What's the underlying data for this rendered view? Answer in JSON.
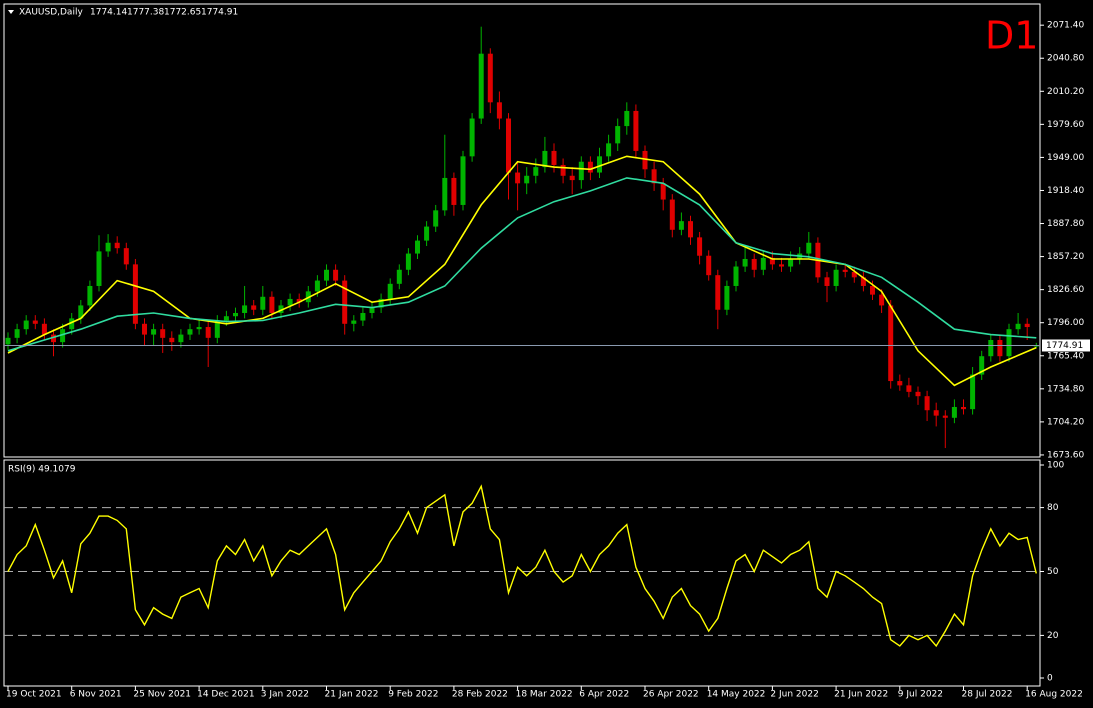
{
  "chart_data": [
    {
      "type": "candlestick",
      "title": "XAUUSD,Daily",
      "annotation": "D1",
      "categories": [
        "19 Oct 2021",
        null,
        null,
        null,
        null,
        null,
        null,
        "6 Nov 2021",
        null,
        null,
        null,
        null,
        null,
        null,
        "25 Nov 2021",
        null,
        null,
        null,
        null,
        null,
        null,
        "14 Dec 2021",
        null,
        null,
        null,
        null,
        null,
        null,
        "3 Jan 2022",
        null,
        null,
        null,
        null,
        null,
        null,
        "21 Jan 2022",
        null,
        null,
        null,
        null,
        null,
        null,
        "9 Feb 2022",
        null,
        null,
        null,
        null,
        null,
        null,
        "28 Feb 2022",
        null,
        null,
        null,
        null,
        null,
        null,
        "18 Mar 2022",
        null,
        null,
        null,
        null,
        null,
        null,
        "6 Apr 2022",
        null,
        null,
        null,
        null,
        null,
        null,
        "26 Apr 2022",
        null,
        null,
        null,
        null,
        null,
        null,
        "14 May 2022",
        null,
        null,
        null,
        null,
        null,
        null,
        "2 Jun 2022",
        null,
        null,
        null,
        null,
        null,
        null,
        "21 Jun 2022",
        null,
        null,
        null,
        null,
        null,
        null,
        "9 Jul 2022",
        null,
        null,
        null,
        null,
        null,
        null,
        "28 Jul 2022",
        null,
        null,
        null,
        null,
        null,
        null,
        "16 Aug 2022",
        null
      ],
      "ohlc": [
        [
          1776,
          1787,
          1771,
          1782
        ],
        [
          1782,
          1795,
          1777,
          1790
        ],
        [
          1790,
          1803,
          1785,
          1798
        ],
        [
          1798,
          1803,
          1790,
          1795
        ],
        [
          1795,
          1800,
          1780,
          1785
        ],
        [
          1785,
          1790,
          1765,
          1778
        ],
        [
          1778,
          1795,
          1773,
          1790
        ],
        [
          1790,
          1805,
          1785,
          1800
        ],
        [
          1800,
          1817,
          1795,
          1812
        ],
        [
          1812,
          1835,
          1807,
          1830
        ],
        [
          1830,
          1877,
          1825,
          1862
        ],
        [
          1862,
          1878,
          1857,
          1870
        ],
        [
          1870,
          1876,
          1860,
          1865
        ],
        [
          1865,
          1870,
          1845,
          1850
        ],
        [
          1850,
          1855,
          1790,
          1795
        ],
        [
          1795,
          1800,
          1775,
          1785
        ],
        [
          1785,
          1795,
          1775,
          1790
        ],
        [
          1790,
          1795,
          1768,
          1782
        ],
        [
          1782,
          1788,
          1770,
          1778
        ],
        [
          1778,
          1790,
          1773,
          1785
        ],
        [
          1785,
          1795,
          1780,
          1790
        ],
        [
          1790,
          1800,
          1785,
          1792
        ],
        [
          1792,
          1797,
          1755,
          1782
        ],
        [
          1782,
          1803,
          1777,
          1798
        ],
        [
          1798,
          1807,
          1793,
          1802
        ],
        [
          1802,
          1810,
          1797,
          1805
        ],
        [
          1805,
          1830,
          1800,
          1812
        ],
        [
          1812,
          1817,
          1803,
          1808
        ],
        [
          1808,
          1830,
          1803,
          1820
        ],
        [
          1820,
          1825,
          1800,
          1805
        ],
        [
          1805,
          1817,
          1800,
          1812
        ],
        [
          1812,
          1823,
          1807,
          1818
        ],
        [
          1818,
          1823,
          1810,
          1815
        ],
        [
          1815,
          1830,
          1810,
          1825
        ],
        [
          1825,
          1840,
          1820,
          1835
        ],
        [
          1835,
          1850,
          1830,
          1845
        ],
        [
          1845,
          1850,
          1830,
          1835
        ],
        [
          1835,
          1840,
          1785,
          1795
        ],
        [
          1795,
          1803,
          1788,
          1798
        ],
        [
          1798,
          1810,
          1793,
          1805
        ],
        [
          1805,
          1815,
          1800,
          1810
        ],
        [
          1810,
          1823,
          1805,
          1818
        ],
        [
          1818,
          1837,
          1813,
          1832
        ],
        [
          1832,
          1850,
          1827,
          1845
        ],
        [
          1845,
          1865,
          1840,
          1860
        ],
        [
          1860,
          1877,
          1855,
          1872
        ],
        [
          1872,
          1890,
          1867,
          1885
        ],
        [
          1885,
          1905,
          1880,
          1900
        ],
        [
          1900,
          1970,
          1895,
          1930
        ],
        [
          1930,
          1935,
          1895,
          1905
        ],
        [
          1905,
          1955,
          1900,
          1950
        ],
        [
          1950,
          1990,
          1945,
          1985
        ],
        [
          1985,
          2070,
          1980,
          2045
        ],
        [
          2045,
          2050,
          1990,
          2000
        ],
        [
          2000,
          2010,
          1975,
          1985
        ],
        [
          1985,
          1990,
          1910,
          1935
        ],
        [
          1935,
          1945,
          1900,
          1925
        ],
        [
          1925,
          1940,
          1915,
          1932
        ],
        [
          1932,
          1948,
          1925,
          1940
        ],
        [
          1940,
          1968,
          1935,
          1955
        ],
        [
          1955,
          1962,
          1935,
          1942
        ],
        [
          1942,
          1948,
          1925,
          1932
        ],
        [
          1932,
          1940,
          1915,
          1928
        ],
        [
          1928,
          1950,
          1920,
          1945
        ],
        [
          1945,
          1950,
          1928,
          1935
        ],
        [
          1935,
          1958,
          1930,
          1950
        ],
        [
          1950,
          1970,
          1945,
          1962
        ],
        [
          1962,
          1985,
          1955,
          1978
        ],
        [
          1978,
          2000,
          1970,
          1992
        ],
        [
          1992,
          1998,
          1948,
          1955
        ],
        [
          1955,
          1960,
          1930,
          1938
        ],
        [
          1938,
          1945,
          1918,
          1925
        ],
        [
          1925,
          1930,
          1900,
          1910
        ],
        [
          1910,
          1915,
          1875,
          1882
        ],
        [
          1882,
          1898,
          1877,
          1890
        ],
        [
          1890,
          1895,
          1868,
          1875
        ],
        [
          1875,
          1880,
          1850,
          1858
        ],
        [
          1858,
          1863,
          1835,
          1840
        ],
        [
          1840,
          1845,
          1790,
          1808
        ],
        [
          1808,
          1835,
          1803,
          1830
        ],
        [
          1830,
          1853,
          1825,
          1848
        ],
        [
          1848,
          1868,
          1843,
          1855
        ],
        [
          1855,
          1860,
          1838,
          1845
        ],
        [
          1845,
          1862,
          1840,
          1856
        ],
        [
          1856,
          1862,
          1845,
          1850
        ],
        [
          1850,
          1856,
          1843,
          1848
        ],
        [
          1848,
          1862,
          1843,
          1855
        ],
        [
          1855,
          1866,
          1850,
          1860
        ],
        [
          1860,
          1880,
          1855,
          1870
        ],
        [
          1870,
          1875,
          1833,
          1838
        ],
        [
          1838,
          1843,
          1815,
          1830
        ],
        [
          1830,
          1850,
          1825,
          1845
        ],
        [
          1845,
          1850,
          1838,
          1843
        ],
        [
          1843,
          1848,
          1833,
          1838
        ],
        [
          1838,
          1843,
          1825,
          1830
        ],
        [
          1830,
          1835,
          1817,
          1822
        ],
        [
          1822,
          1827,
          1805,
          1812
        ],
        [
          1812,
          1817,
          1735,
          1742
        ],
        [
          1742,
          1748,
          1733,
          1738
        ],
        [
          1738,
          1745,
          1727,
          1732
        ],
        [
          1732,
          1737,
          1720,
          1728
        ],
        [
          1728,
          1733,
          1705,
          1715
        ],
        [
          1715,
          1722,
          1700,
          1710
        ],
        [
          1710,
          1715,
          1680,
          1708
        ],
        [
          1708,
          1725,
          1703,
          1718
        ],
        [
          1718,
          1725,
          1711,
          1716
        ],
        [
          1716,
          1755,
          1711,
          1748
        ],
        [
          1748,
          1770,
          1743,
          1765
        ],
        [
          1765,
          1785,
          1760,
          1780
        ],
        [
          1780,
          1785,
          1760,
          1765
        ],
        [
          1765,
          1795,
          1760,
          1790
        ],
        [
          1790,
          1805,
          1785,
          1795
        ],
        [
          1795,
          1800,
          1780,
          1792
        ],
        [
          1774.14,
          1777.38,
          1772.65,
          1774.91
        ]
      ],
      "up_color": "#00b400",
      "down_color": "#e00000",
      "series": [
        {
          "color": "#ffff00",
          "x": [
            0,
            4,
            8,
            12,
            16,
            20,
            24,
            28,
            32,
            36,
            40,
            44,
            48,
            52,
            56,
            60,
            64,
            68,
            72,
            76,
            80,
            84,
            88,
            92,
            96,
            100,
            104,
            108,
            113
          ],
          "values": [
            1768,
            1785,
            1800,
            1835,
            1825,
            1800,
            1795,
            1800,
            1815,
            1832,
            1815,
            1820,
            1850,
            1905,
            1945,
            1940,
            1938,
            1950,
            1945,
            1915,
            1870,
            1855,
            1855,
            1850,
            1825,
            1770,
            1738,
            1755,
            1773
          ]
        },
        {
          "color": "#30dca0",
          "x": [
            0,
            4,
            8,
            12,
            16,
            20,
            24,
            28,
            32,
            36,
            40,
            44,
            48,
            52,
            56,
            60,
            64,
            68,
            72,
            76,
            80,
            84,
            88,
            92,
            96,
            100,
            104,
            108,
            113
          ],
          "values": [
            1770,
            1780,
            1790,
            1802,
            1805,
            1800,
            1797,
            1798,
            1805,
            1813,
            1810,
            1815,
            1830,
            1865,
            1893,
            1908,
            1918,
            1930,
            1925,
            1905,
            1870,
            1860,
            1857,
            1850,
            1838,
            1815,
            1790,
            1785,
            1782
          ]
        }
      ],
      "ylim": [
        1671.7,
        2091
      ],
      "yticks": [
        {
          "value": 2071.4,
          "label": "2071.40"
        },
        {
          "value": 2040.8,
          "label": "2040.80"
        },
        {
          "value": 2010.2,
          "label": "2010.20"
        },
        {
          "value": 1979.6,
          "label": "1979.60"
        },
        {
          "value": 1949,
          "label": "1949.00"
        },
        {
          "value": 1918.4,
          "label": "1918.40"
        },
        {
          "value": 1887.8,
          "label": "1887.80"
        },
        {
          "value": 1857.2,
          "label": "1857.20"
        },
        {
          "value": 1826.6,
          "label": "1826.60"
        },
        {
          "value": 1796,
          "label": "1796.00"
        },
        {
          "value": 1765.4,
          "label": "1765.40"
        },
        {
          "value": 1734.8,
          "label": "1734.80"
        },
        {
          "value": 1704.2,
          "label": "1704.20"
        },
        {
          "value": 1673.6,
          "label": "1673.60"
        }
      ],
      "grid": false
    },
    {
      "type": "line",
      "title": "RSI(9) 49.1079",
      "color": "#ffff00",
      "values": [
        50,
        58,
        62,
        72,
        60,
        47,
        55,
        40,
        63,
        68,
        76,
        76,
        74,
        70,
        32,
        25,
        33,
        30,
        28,
        38,
        40,
        42,
        33,
        55,
        62,
        58,
        65,
        55,
        62,
        48,
        55,
        60,
        58,
        62,
        66,
        70,
        58,
        32,
        40,
        45,
        50,
        55,
        64,
        70,
        78,
        68,
        80,
        83,
        86,
        62,
        78,
        82,
        90,
        70,
        65,
        40,
        52,
        48,
        52,
        60,
        50,
        45,
        48,
        58,
        50,
        58,
        62,
        68,
        72,
        52,
        42,
        36,
        28,
        38,
        42,
        34,
        30,
        22,
        28,
        42,
        55,
        58,
        50,
        60,
        57,
        54,
        58,
        60,
        64,
        42,
        38,
        50,
        48,
        45,
        42,
        38,
        35,
        18,
        15,
        20,
        18,
        20,
        15,
        22,
        30,
        25,
        48,
        60,
        70,
        62,
        68,
        65,
        66,
        49.1079
      ],
      "ylim": [
        0,
        100
      ],
      "yticks": [
        100,
        80,
        50,
        20,
        0
      ],
      "levels": [
        80,
        50,
        20
      ],
      "grid": false
    }
  ]
}
